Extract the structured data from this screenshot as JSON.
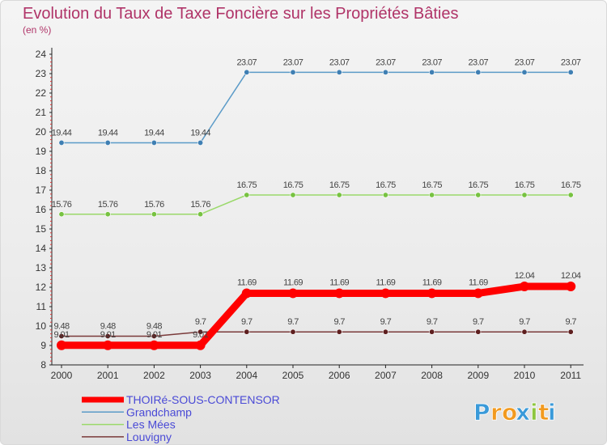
{
  "chart_data": {
    "type": "line",
    "title": "Evolution du Taux de Taxe Foncière sur les Propriétés Bâties",
    "subtitle": "(en %)",
    "xlabel": "",
    "ylabel": "",
    "x": [
      "2000",
      "2001",
      "2002",
      "2003",
      "2004",
      "2005",
      "2006",
      "2007",
      "2008",
      "2009",
      "2010",
      "2011"
    ],
    "yticks": [
      "8",
      "9",
      "10",
      "11",
      "12",
      "13",
      "14",
      "15",
      "16",
      "17",
      "18",
      "19",
      "20",
      "21",
      "22",
      "23",
      "24"
    ],
    "ylim": [
      8,
      24
    ],
    "grid": false,
    "legend_position": "bottom-left",
    "series": [
      {
        "name": "Grandchamp",
        "color": "#5b9bc8",
        "marker_color": "#3f7fb3",
        "values": [
          19.44,
          19.44,
          19.44,
          19.44,
          23.07,
          23.07,
          23.07,
          23.07,
          23.07,
          23.07,
          23.07,
          23.07
        ],
        "labels": [
          "19.44",
          "19.44",
          "19.44",
          "19.44",
          "23.07",
          "23.07",
          "23.07",
          "23.07",
          "23.07",
          "23.07",
          "23.07",
          "23.07"
        ]
      },
      {
        "name": "Les Mées",
        "color": "#9ad96a",
        "marker_color": "#77c241",
        "values": [
          15.76,
          15.76,
          15.76,
          15.76,
          16.75,
          16.75,
          16.75,
          16.75,
          16.75,
          16.75,
          16.75,
          16.75
        ],
        "labels": [
          "15.76",
          "15.76",
          "15.76",
          "15.76",
          "16.75",
          "16.75",
          "16.75",
          "16.75",
          "16.75",
          "16.75",
          "16.75",
          "16.75"
        ]
      },
      {
        "name": "Louvigny",
        "color": "#7a3a3a",
        "marker_color": "#5e1f1f",
        "values": [
          9.48,
          9.48,
          9.48,
          9.7,
          9.7,
          9.7,
          9.7,
          9.7,
          9.7,
          9.7,
          9.7,
          9.7
        ],
        "labels": [
          "9.48",
          "9.48",
          "9.48",
          "9.7",
          "9.7",
          "9.7",
          "9.7",
          "9.7",
          "9.7",
          "9.7",
          "9.7",
          "9.7"
        ]
      },
      {
        "name": "THOIRé-SOUS-CONTENSOR",
        "color": "#ff0000",
        "marker_color": "#ff0000",
        "thick": true,
        "values": [
          9.01,
          9.01,
          9.01,
          9.01,
          11.69,
          11.69,
          11.69,
          11.69,
          11.69,
          11.69,
          12.04,
          12.04
        ],
        "labels": [
          "9.01",
          "9.01",
          "9.01",
          "9.01",
          "11.69",
          "11.69",
          "11.69",
          "11.69",
          "11.69",
          "11.69",
          "12.04",
          "12.04"
        ]
      }
    ],
    "legend": [
      "THOIRé-SOUS-CONTENSOR",
      "Grandchamp",
      "Les Mées",
      "Louvigny"
    ]
  },
  "logo": {
    "letters": [
      "P",
      "r",
      "o",
      "x",
      "i",
      "t",
      "i"
    ],
    "colors": [
      "#3a9ad9",
      "#f29a1f",
      "#f29a1f",
      "#3a9ad9",
      "#8dc63f",
      "#f29a1f",
      "#3a9ad9"
    ]
  }
}
